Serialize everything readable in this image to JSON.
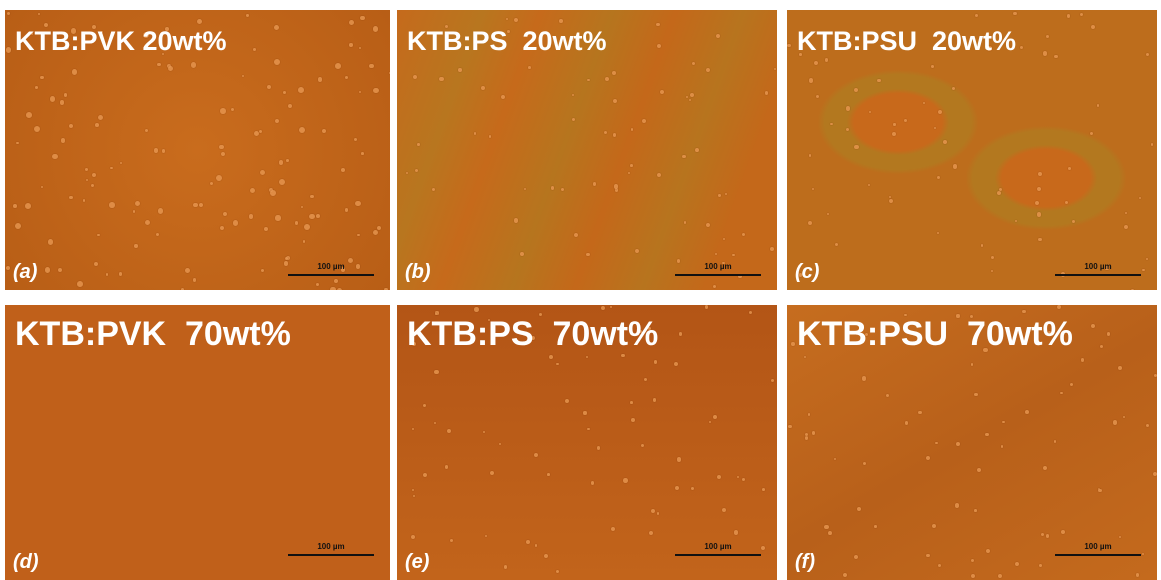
{
  "panels": [
    {
      "title": "KTB:PVK 20wt%",
      "label": "(a)",
      "scale": "100 µm"
    },
    {
      "title": "KTB:PS  20wt%",
      "label": "(b)",
      "scale": "100 µm"
    },
    {
      "title": "KTB:PSU  20wt%",
      "label": "(c)",
      "scale": "100 µm"
    },
    {
      "title": "KTB:PVK  70wt%",
      "label": "(d)",
      "scale": "100 µm"
    },
    {
      "title": "KTB:PS  70wt%",
      "label": "(e)",
      "scale": "100 µm"
    },
    {
      "title": "KTB:PSU  70wt%",
      "label": "(f)",
      "scale": "100 µm"
    }
  ]
}
